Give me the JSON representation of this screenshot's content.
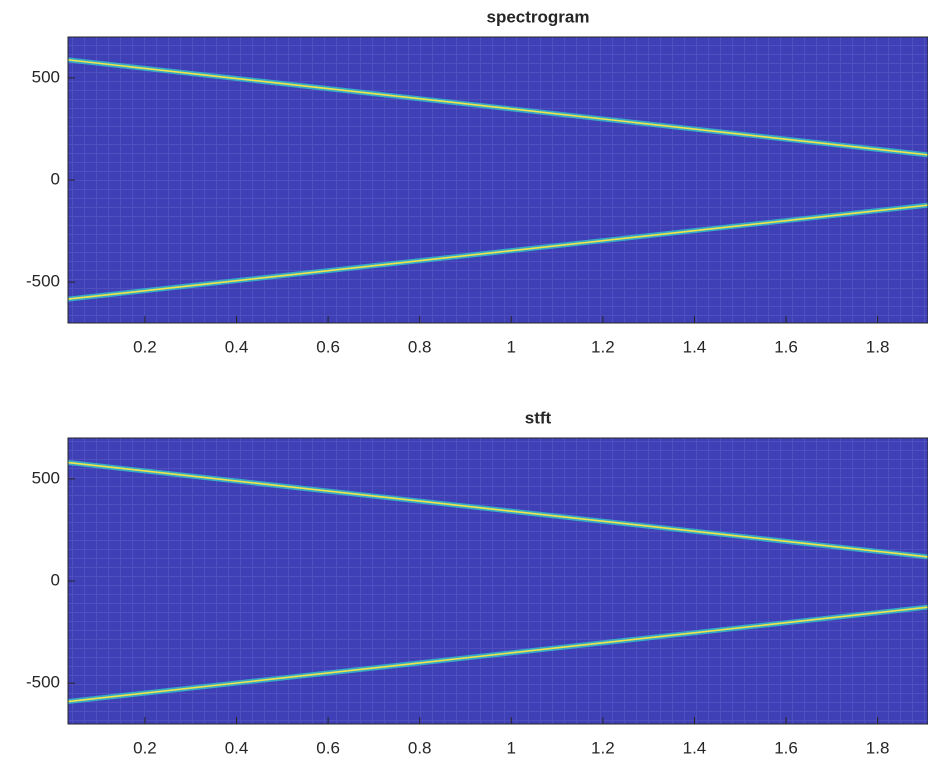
{
  "chart_data": [
    {
      "type": "spectrogram",
      "title": "spectrogram",
      "background": "#3f3fb6",
      "ridge_color": "#f2e34a",
      "halo_color": "#35c6c9",
      "xlim": [
        0.032,
        1.91
      ],
      "ylim": [
        -700,
        700
      ],
      "xticks": [
        0.2,
        0.4,
        0.6,
        0.8,
        1,
        1.2,
        1.4,
        1.6,
        1.8
      ],
      "yticks": [
        -500,
        0,
        500
      ],
      "series": [
        {
          "x": [
            0.032,
            1.91
          ],
          "values": [
            588,
            123
          ]
        },
        {
          "x": [
            0.032,
            1.91
          ],
          "values": [
            -583,
            -123
          ]
        }
      ]
    },
    {
      "type": "spectrogram",
      "title": "stft",
      "background": "#3f3fb6",
      "ridge_color": "#f2e34a",
      "halo_color": "#35c6c9",
      "xlim": [
        0.032,
        1.91
      ],
      "ylim": [
        -700,
        700
      ],
      "xticks": [
        0.2,
        0.4,
        0.6,
        0.8,
        1,
        1.2,
        1.4,
        1.6,
        1.8
      ],
      "yticks": [
        -500,
        0,
        500
      ],
      "series": [
        {
          "x": [
            0.032,
            1.91
          ],
          "values": [
            580,
            118
          ]
        },
        {
          "x": [
            0.032,
            1.91
          ],
          "values": [
            -590,
            -128
          ]
        }
      ]
    }
  ]
}
